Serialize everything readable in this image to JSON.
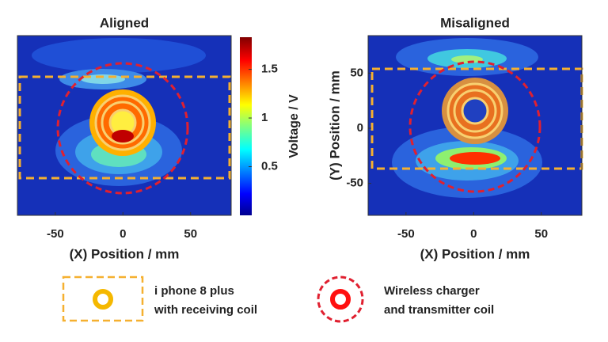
{
  "chart_data": [
    {
      "type": "contour",
      "title": "Aligned",
      "x_label": "(X) Position / mm",
      "xlim": [
        -78,
        80
      ],
      "xticks": [
        -50,
        0,
        50
      ],
      "ylim": [
        -79,
        84
      ],
      "colorbar": {
        "label": "Voltage / V",
        "lim": [
          0,
          1.83
        ],
        "ticks": [
          0.5,
          1,
          1.5
        ]
      }
    },
    {
      "type": "contour",
      "title": "Misaligned",
      "x_label": "(X) Position / mm",
      "y_label": "(Y) Position / mm",
      "xlim": [
        -78,
        80
      ],
      "xticks": [
        -50,
        0,
        50
      ],
      "ylim": [
        -79,
        84
      ],
      "yticks": [
        -50,
        0,
        50
      ]
    }
  ],
  "legend": [
    {
      "lines": [
        "i phone 8 plus",
        "with receiving coil"
      ]
    },
    {
      "lines": [
        "Wireless charger",
        "and transmitter coil"
      ]
    }
  ]
}
